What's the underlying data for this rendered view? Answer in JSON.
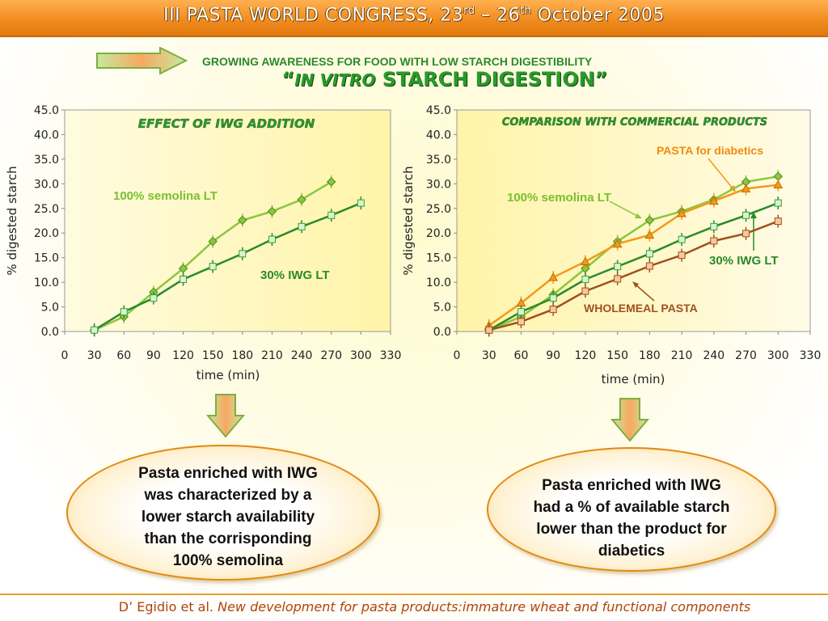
{
  "header": {
    "title_main": "III PASTA WORLD CONGRESS, 23",
    "sup1": "rd",
    "title_mid": " – 26",
    "sup2": "th",
    "title_end": " October 2005"
  },
  "subhead": "GROWING AWARENESS FOR FOOD WITH LOW STARCH DIGESTIBILITY",
  "headline": {
    "open_quote": "“",
    "italic": "IN VITRO",
    "rest": " STARCH DIGESTION”"
  },
  "colors": {
    "light_green": "#8cc63f",
    "dark_green": "#2a8a2a",
    "orange": "#f39a1a",
    "brown": "#a0501e",
    "header_orange": "#f08a1c"
  },
  "chart_data": [
    {
      "type": "line",
      "title": "EFFECT OF IWG ADDITION",
      "xlabel": "time (min)",
      "ylabel": "%  digested starch",
      "xlim": [
        0,
        330
      ],
      "ylim": [
        0,
        45
      ],
      "xticks": [
        "0",
        "30",
        "60",
        "90",
        "120",
        "150",
        "180",
        "210",
        "240",
        "270",
        "300",
        "330"
      ],
      "yticks": [
        "0.0",
        "5.0",
        "10.0",
        "15.0",
        "20.0",
        "25.0",
        "30.0",
        "35.0",
        "40.0",
        "45.0"
      ],
      "series": [
        {
          "name": "100% semolina  LT",
          "color": "#8cc63f",
          "marker": "diamond",
          "x": [
            30,
            60,
            90,
            120,
            150,
            180,
            210,
            240,
            270
          ],
          "y": [
            0.3,
            3.0,
            8.0,
            12.8,
            18.3,
            22.6,
            24.4,
            26.8,
            30.4
          ]
        },
        {
          "name": "30% IWG  LT",
          "color": "#2a8a2a",
          "marker": "square",
          "x": [
            30,
            60,
            90,
            120,
            150,
            180,
            210,
            240,
            270,
            300
          ],
          "y": [
            0.3,
            4.0,
            6.8,
            10.6,
            13.2,
            15.8,
            18.7,
            21.3,
            23.6,
            26.1
          ]
        }
      ]
    },
    {
      "type": "line",
      "title": "COMPARISON WITH COMMERCIAL PRODUCTS",
      "xlabel": "time (min)",
      "ylabel": "% digested starch",
      "xlim": [
        0,
        330
      ],
      "ylim": [
        0,
        45
      ],
      "xticks": [
        "0",
        "30",
        "60",
        "90",
        "120",
        "150",
        "180",
        "210",
        "240",
        "270",
        "300",
        "330"
      ],
      "yticks": [
        "0.0",
        "5.0",
        "10.0",
        "15.0",
        "20.0",
        "25.0",
        "30.0",
        "35.0",
        "40.0",
        "45.0"
      ],
      "series": [
        {
          "name": "100% semolina  LT",
          "color": "#8cc63f",
          "marker": "diamond",
          "x": [
            30,
            60,
            90,
            120,
            150,
            180,
            210,
            240,
            270,
            300
          ],
          "y": [
            0.3,
            3.0,
            7.5,
            12.8,
            18.3,
            22.6,
            24.4,
            26.8,
            30.4,
            31.5
          ]
        },
        {
          "name": "PASTA for diabetics",
          "color": "#f39a1a",
          "marker": "triangle",
          "x": [
            30,
            60,
            90,
            120,
            150,
            180,
            210,
            240,
            270,
            300
          ],
          "y": [
            1.2,
            5.8,
            11.0,
            14.2,
            17.8,
            19.6,
            24.0,
            26.5,
            29.0,
            29.8
          ]
        },
        {
          "name": "30% IWG  LT",
          "color": "#2a8a2a",
          "marker": "square",
          "x": [
            30,
            60,
            90,
            120,
            150,
            180,
            210,
            240,
            270,
            300
          ],
          "y": [
            0.3,
            4.0,
            6.8,
            10.6,
            13.2,
            15.8,
            18.7,
            21.3,
            23.6,
            26.1
          ]
        },
        {
          "name": "WHOLEMEAL PASTA",
          "color": "#a0501e",
          "marker": "square",
          "x": [
            30,
            60,
            90,
            120,
            150,
            180,
            210,
            240,
            270,
            300
          ],
          "y": [
            0.3,
            2.0,
            4.5,
            8.2,
            10.7,
            13.3,
            15.5,
            18.4,
            19.9,
            22.4
          ]
        }
      ]
    }
  ],
  "conclusions": {
    "left": [
      "Pasta enriched with IWG",
      "was characterized by a",
      "lower starch availability",
      "than the corrisponding",
      "100% semolina"
    ],
    "right": [
      "Pasta enriched with IWG",
      "had a % of available starch",
      "lower than the product for",
      "diabetics"
    ]
  },
  "footer": {
    "authors": "D’ Egidio et al. ",
    "title": "New development for pasta products:immature wheat and functional components"
  }
}
